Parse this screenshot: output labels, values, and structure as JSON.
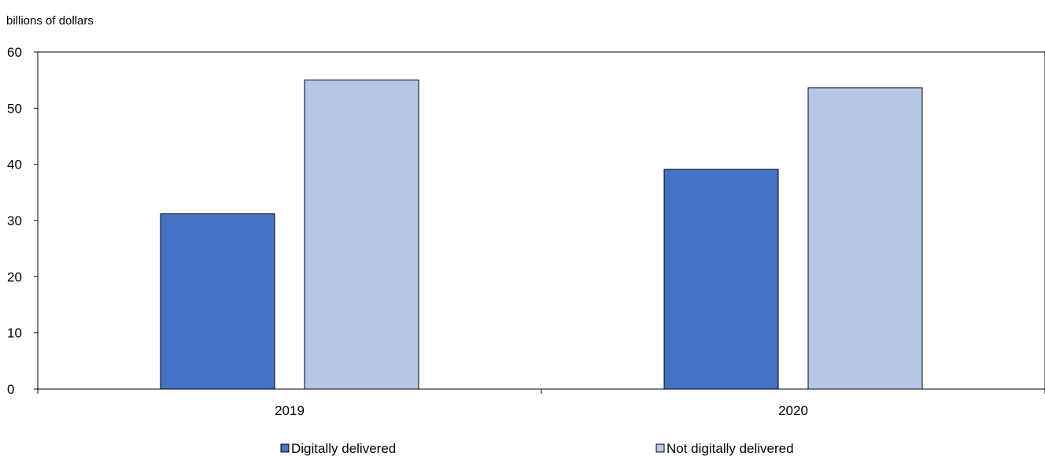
{
  "chart_data": {
    "type": "bar",
    "unit_label": "billions of dollars",
    "categories": [
      "2019",
      "2020"
    ],
    "series": [
      {
        "name": "Digitally delivered",
        "values": [
          31.2,
          39.1
        ],
        "color": "#4472C4"
      },
      {
        "name": "Not digitally delivered",
        "values": [
          55.0,
          53.6
        ],
        "color": "#B4C7E7"
      }
    ],
    "ylim": [
      0,
      60
    ],
    "yticks": [
      0,
      10,
      20,
      30,
      40,
      50,
      60
    ],
    "grid": false,
    "legend_position": "bottom"
  }
}
